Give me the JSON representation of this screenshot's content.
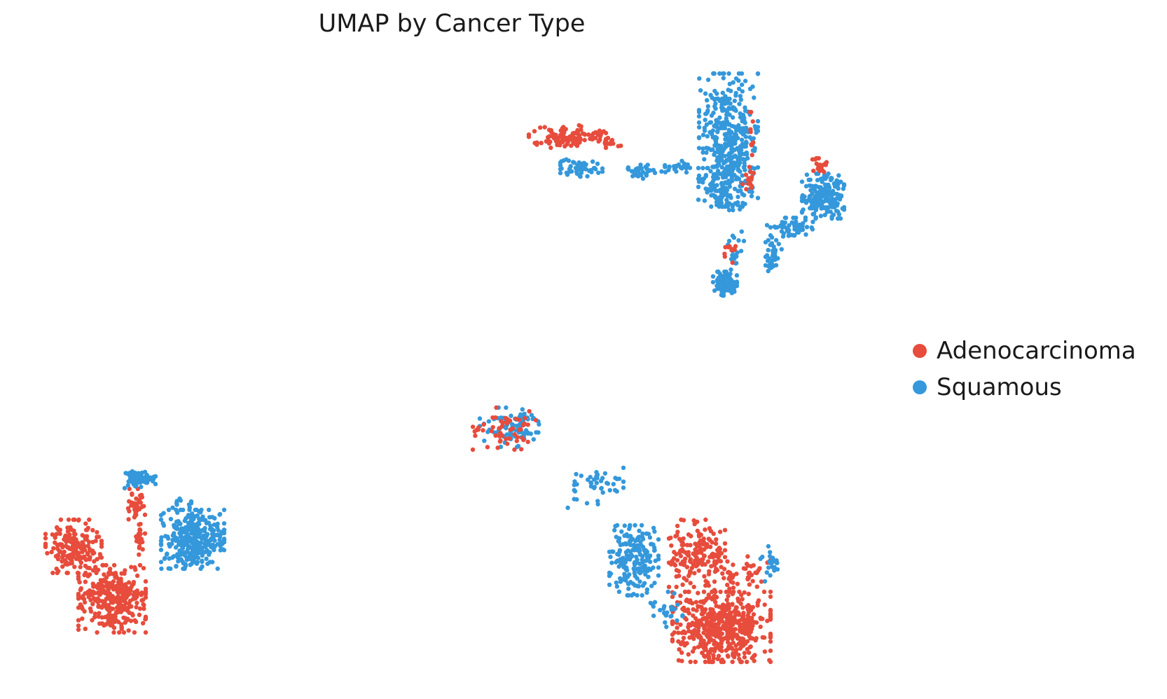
{
  "chart_data": {
    "type": "scatter",
    "title": "UMAP by Cancer Type",
    "xlabel": "",
    "ylabel": "",
    "axes_visible": false,
    "grid": false,
    "legend_position": "right",
    "series": [
      {
        "name": "Adenocarcinoma",
        "color": "#e74c3c"
      },
      {
        "name": "Squamous",
        "color": "#3498db"
      }
    ],
    "clusters": [
      {
        "series": 1,
        "cx": 1040,
        "cy": 200,
        "rx": 42,
        "ry": 95,
        "n": 420
      },
      {
        "series": 1,
        "cx": 1035,
        "cy": 270,
        "rx": 38,
        "ry": 30,
        "n": 90
      },
      {
        "series": 0,
        "cx": 1072,
        "cy": 220,
        "rx": 5,
        "ry": 60,
        "n": 14
      },
      {
        "series": 0,
        "cx": 1068,
        "cy": 262,
        "rx": 8,
        "ry": 18,
        "n": 10
      },
      {
        "series": 0,
        "cx": 810,
        "cy": 195,
        "rx": 55,
        "ry": 16,
        "n": 120
      },
      {
        "series": 0,
        "cx": 870,
        "cy": 205,
        "rx": 22,
        "ry": 8,
        "n": 12
      },
      {
        "series": 1,
        "cx": 830,
        "cy": 240,
        "rx": 30,
        "ry": 13,
        "n": 55
      },
      {
        "series": 1,
        "cx": 910,
        "cy": 245,
        "rx": 25,
        "ry": 10,
        "n": 40
      },
      {
        "series": 1,
        "cx": 960,
        "cy": 238,
        "rx": 25,
        "ry": 9,
        "n": 22
      },
      {
        "series": 1,
        "cx": 1175,
        "cy": 280,
        "rx": 30,
        "ry": 32,
        "n": 200
      },
      {
        "series": 1,
        "cx": 1130,
        "cy": 325,
        "rx": 35,
        "ry": 14,
        "n": 60
      },
      {
        "series": 1,
        "cx": 1105,
        "cy": 365,
        "rx": 12,
        "ry": 22,
        "n": 40
      },
      {
        "series": 0,
        "cx": 1170,
        "cy": 238,
        "rx": 10,
        "ry": 12,
        "n": 20
      },
      {
        "series": 1,
        "cx": 1035,
        "cy": 405,
        "rx": 17,
        "ry": 17,
        "n": 90
      },
      {
        "series": 1,
        "cx": 1050,
        "cy": 355,
        "rx": 12,
        "ry": 30,
        "n": 22
      },
      {
        "series": 0,
        "cx": 1040,
        "cy": 355,
        "rx": 10,
        "ry": 20,
        "n": 10
      },
      {
        "series": 0,
        "cx": 105,
        "cy": 780,
        "rx": 40,
        "ry": 38,
        "n": 180
      },
      {
        "series": 0,
        "cx": 160,
        "cy": 855,
        "rx": 48,
        "ry": 48,
        "n": 330
      },
      {
        "series": 0,
        "cx": 195,
        "cy": 720,
        "rx": 12,
        "ry": 22,
        "n": 35
      },
      {
        "series": 0,
        "cx": 200,
        "cy": 765,
        "rx": 7,
        "ry": 30,
        "n": 25
      },
      {
        "series": 1,
        "cx": 200,
        "cy": 685,
        "rx": 22,
        "ry": 12,
        "n": 70
      },
      {
        "series": 1,
        "cx": 275,
        "cy": 770,
        "rx": 45,
        "ry": 42,
        "n": 330
      },
      {
        "series": 1,
        "cx": 255,
        "cy": 720,
        "rx": 18,
        "ry": 8,
        "n": 10
      },
      {
        "series": 1,
        "cx": 730,
        "cy": 610,
        "rx": 45,
        "ry": 28,
        "n": 90
      },
      {
        "series": 0,
        "cx": 720,
        "cy": 612,
        "rx": 45,
        "ry": 30,
        "n": 55
      },
      {
        "series": 1,
        "cx": 850,
        "cy": 695,
        "rx": 40,
        "ry": 32,
        "n": 45
      },
      {
        "series": 1,
        "cx": 905,
        "cy": 800,
        "rx": 35,
        "ry": 50,
        "n": 200
      },
      {
        "series": 0,
        "cx": 995,
        "cy": 790,
        "rx": 40,
        "ry": 48,
        "n": 170
      },
      {
        "series": 0,
        "cx": 1030,
        "cy": 895,
        "rx": 70,
        "ry": 50,
        "n": 540
      },
      {
        "series": 0,
        "cx": 1060,
        "cy": 820,
        "rx": 40,
        "ry": 28,
        "n": 50
      },
      {
        "series": 1,
        "cx": 1100,
        "cy": 805,
        "rx": 15,
        "ry": 25,
        "n": 25
      },
      {
        "series": 1,
        "cx": 950,
        "cy": 870,
        "rx": 25,
        "ry": 25,
        "n": 25
      }
    ]
  }
}
